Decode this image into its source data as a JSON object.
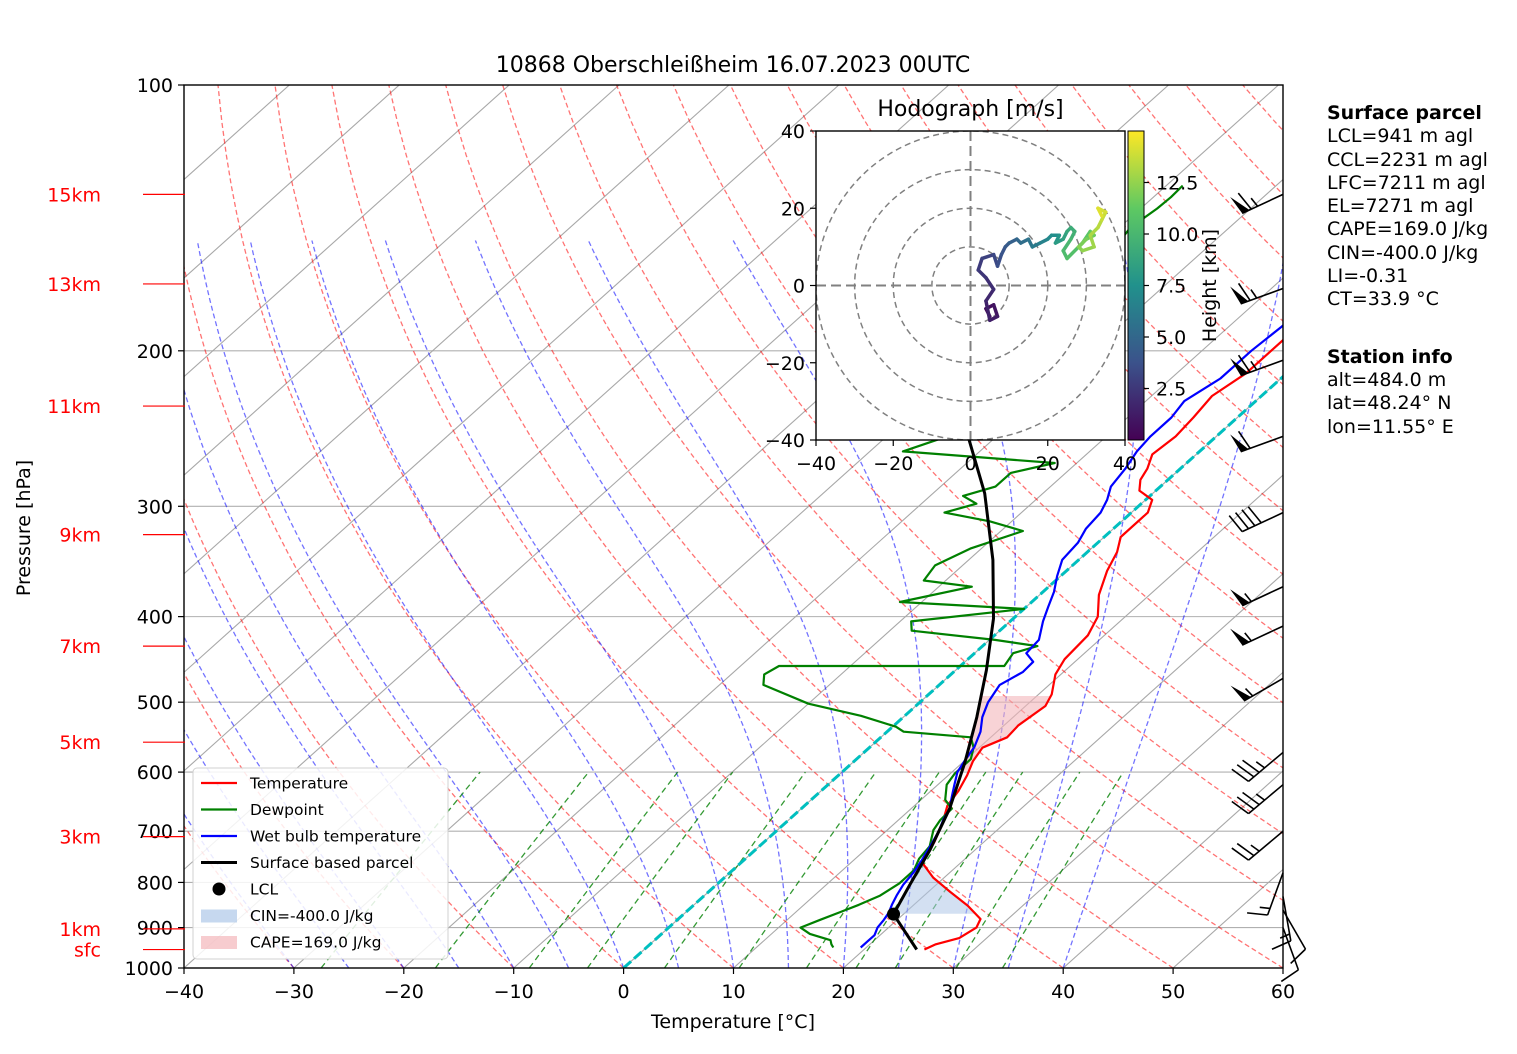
{
  "chart_data": {
    "type": "skew-t log-p sounding",
    "title": "10868 Oberschleißheim 16.07.2023 00UTC",
    "xlabel": "Temperature [°C]",
    "ylabel": "Pressure [hPa]",
    "xlim": [
      -40,
      60
    ],
    "ylim": [
      1000,
      100
    ],
    "yscale": "log",
    "grid": true,
    "x_ticks": [
      "−40",
      "−30",
      "−20",
      "−10",
      "0",
      "10",
      "20",
      "30",
      "40",
      "50",
      "60"
    ],
    "y_ticks": [
      "100",
      "200",
      "300",
      "400",
      "500",
      "600",
      "700",
      "800",
      "900",
      "1000"
    ],
    "height_labels": [
      {
        "label": "15km",
        "pressure": 133
      },
      {
        "label": "13km",
        "pressure": 168
      },
      {
        "label": "11km",
        "pressure": 231
      },
      {
        "label": "9km",
        "pressure": 323
      },
      {
        "label": "7km",
        "pressure": 432
      },
      {
        "label": "5km",
        "pressure": 555
      },
      {
        "label": "3km",
        "pressure": 710
      },
      {
        "label": "1km",
        "pressure": 903
      },
      {
        "label": "sfc",
        "pressure": 953
      }
    ],
    "colors": {
      "temperature": "#ff0000",
      "dewpoint": "#008000",
      "wetbulb": "#0000ff",
      "parcel": "#000000",
      "dry_adiabat": "#ff0000",
      "moist_adiabat": "#0000ff",
      "mixing_ratio": "#008000",
      "zero_isotherm": "#00bfbf",
      "cin_fill": "#aec7e8",
      "cape_fill": "#f4b6bb"
    },
    "series": [
      {
        "name": "Temperature",
        "points": [
          [
            25.5,
            953
          ],
          [
            26,
            940
          ],
          [
            27.5,
            925
          ],
          [
            28,
            900
          ],
          [
            27.5,
            880
          ],
          [
            25,
            850
          ],
          [
            22,
            820
          ],
          [
            19,
            790
          ],
          [
            16.5,
            760
          ],
          [
            15.5,
            720
          ],
          [
            14.3,
            685
          ],
          [
            13,
            655
          ],
          [
            12.5,
            630
          ],
          [
            11.7,
            605
          ],
          [
            10.8,
            583
          ],
          [
            10.3,
            563
          ],
          [
            11.5,
            548
          ],
          [
            11.3,
            531
          ],
          [
            11.8,
            505
          ],
          [
            11.2,
            490
          ],
          [
            9.5,
            465
          ],
          [
            8.8,
            447
          ],
          [
            8.5,
            420
          ],
          [
            7.5,
            400
          ],
          [
            5.4,
            378
          ],
          [
            3.7,
            355
          ],
          [
            2.7,
            338
          ],
          [
            1.5,
            325
          ],
          [
            1.5,
            305
          ],
          [
            0.6,
            295
          ],
          [
            -1.5,
            288
          ],
          [
            -2.5,
            280
          ],
          [
            -3,
            272
          ],
          [
            -4,
            262
          ],
          [
            -3.7,
            250
          ],
          [
            -4,
            238
          ],
          [
            -4.5,
            225
          ],
          [
            -3.7,
            212
          ],
          [
            -3.7,
            200
          ],
          [
            -3.7,
            188
          ],
          [
            -3.6,
            175
          ],
          [
            -3.8,
            165
          ],
          [
            -4,
            157
          ],
          [
            -4.2,
            147
          ],
          [
            -3.5,
            140
          ],
          [
            -1.5,
            133
          ],
          [
            -0.2,
            130
          ]
        ]
      },
      {
        "name": "Dewpoint",
        "points": [
          [
            17,
            948
          ],
          [
            16.5,
            940
          ],
          [
            16,
            930
          ],
          [
            13.5,
            915
          ],
          [
            12,
            900
          ],
          [
            13,
            882
          ],
          [
            14,
            865
          ],
          [
            15,
            848
          ],
          [
            16,
            828
          ],
          [
            16.5,
            802
          ],
          [
            16.5,
            775
          ],
          [
            15.8,
            752
          ],
          [
            15.5,
            728
          ],
          [
            14.2,
            698
          ],
          [
            13.8,
            680
          ],
          [
            13.7,
            660
          ],
          [
            12.2,
            645
          ],
          [
            10.8,
            620
          ],
          [
            10.4,
            602
          ],
          [
            10.4,
            580
          ],
          [
            9.5,
            563
          ],
          [
            8.2,
            548
          ],
          [
            1.5,
            540
          ],
          [
            0.3,
            533
          ],
          [
            -4,
            518
          ],
          [
            -10,
            502
          ],
          [
            -16,
            478
          ],
          [
            -17,
            465
          ],
          [
            -16.5,
            455
          ],
          [
            4,
            455
          ],
          [
            3.5,
            440
          ],
          [
            5,
            432
          ],
          [
            0.5,
            425
          ],
          [
            -8,
            415
          ],
          [
            -9,
            405
          ],
          [
            0,
            392
          ],
          [
            -12,
            385
          ],
          [
            -7,
            370
          ],
          [
            -12,
            364
          ],
          [
            -12.5,
            350
          ],
          [
            -11,
            335
          ],
          [
            -8,
            320
          ],
          [
            -12,
            312
          ],
          [
            -17,
            305
          ],
          [
            -15,
            298
          ],
          [
            -17,
            292
          ],
          [
            -15,
            285
          ],
          [
            -15,
            275
          ],
          [
            -12,
            268
          ],
          [
            -27,
            260
          ],
          [
            -25,
            252
          ],
          [
            -24.5,
            242
          ],
          [
            -26,
            232
          ],
          [
            -23,
            225
          ],
          [
            -25,
            218
          ],
          [
            -23,
            212
          ],
          [
            -25,
            206
          ],
          [
            -24,
            199
          ],
          [
            -26,
            190
          ],
          [
            -27.5,
            180
          ],
          [
            -28.5,
            170
          ],
          [
            -28.5,
            162
          ],
          [
            -28.5,
            152
          ],
          [
            -29,
            145
          ],
          [
            -28.5,
            138
          ],
          [
            -28.4,
            134
          ],
          [
            -28.5,
            130
          ]
        ]
      },
      {
        "name": "Wet bulb temperature",
        "points": [
          [
            19.5,
            948
          ],
          [
            19.5,
            935
          ],
          [
            19.5,
            918
          ],
          [
            19,
            900
          ],
          [
            18.8,
            882
          ],
          [
            18.5,
            865
          ],
          [
            18,
            848
          ],
          [
            17.5,
            828
          ],
          [
            17,
            805
          ],
          [
            16.7,
            780
          ],
          [
            16.2,
            755
          ],
          [
            15.6,
            730
          ],
          [
            14.8,
            700
          ],
          [
            14,
            678
          ],
          [
            13.5,
            660
          ],
          [
            12.5,
            640
          ],
          [
            11.5,
            620
          ],
          [
            10.5,
            600
          ],
          [
            10,
            582
          ],
          [
            9.5,
            562
          ],
          [
            8.5,
            540
          ],
          [
            7.2,
            520
          ],
          [
            6.2,
            500
          ],
          [
            5.5,
            478
          ],
          [
            6.3,
            462
          ],
          [
            6.2,
            450
          ],
          [
            4.7,
            440
          ],
          [
            4.5,
            425
          ],
          [
            3,
            405
          ],
          [
            2,
            390
          ],
          [
            1,
            375
          ],
          [
            -0.3,
            360
          ],
          [
            -1.5,
            345
          ],
          [
            -1.8,
            330
          ],
          [
            -2.5,
            318
          ],
          [
            -2.8,
            305
          ],
          [
            -3.5,
            295
          ],
          [
            -4.5,
            285
          ],
          [
            -5,
            272
          ],
          [
            -5.7,
            260
          ],
          [
            -6,
            250
          ],
          [
            -6,
            238
          ],
          [
            -6.5,
            228
          ],
          [
            -5.5,
            215
          ],
          [
            -5.5,
            200
          ],
          [
            -5.2,
            188
          ],
          [
            -5,
            175
          ],
          [
            -5.3,
            165
          ],
          [
            -5.5,
            155
          ],
          [
            -5.5,
            145
          ],
          [
            -4.5,
            138
          ],
          [
            -2.5,
            132
          ],
          [
            -0.5,
            130
          ]
        ]
      },
      {
        "name": "Surface based parcel",
        "points": [
          [
            24.8,
            953
          ],
          [
            19.1,
            869
          ],
          [
            17.6,
            805
          ],
          [
            15.9,
            735
          ],
          [
            13.5,
            660
          ],
          [
            10.2,
            585
          ],
          [
            6.7,
            520
          ],
          [
            2.8,
            460
          ],
          [
            -1.8,
            402
          ],
          [
            -7.8,
            345
          ],
          [
            -15.3,
            290
          ],
          [
            -24.6,
            240
          ],
          [
            -36,
            195
          ],
          [
            -49,
            158
          ],
          [
            -58,
            138
          ]
        ]
      }
    ],
    "lcl_marker": {
      "label": "LCL",
      "temperature": 19.1,
      "pressure": 869
    },
    "cin": {
      "label": "CIN=-400.0 J/kg",
      "value": -400.0
    },
    "cape": {
      "label": "CAPE=169.0 J/kg",
      "value": 169.0
    },
    "legend": {
      "position": "lower-left",
      "entries": [
        "Temperature",
        "Dewpoint",
        "Wet bulb temperature",
        "Surface based parcel",
        "LCL",
        "CIN=-400.0 J/kg",
        "CAPE=169.0 J/kg"
      ]
    },
    "wind_barbs": [
      {
        "pressure": 133,
        "speed_kt": 65,
        "direction_deg": 245
      },
      {
        "pressure": 170,
        "speed_kt": 65,
        "direction_deg": 250
      },
      {
        "pressure": 205,
        "speed_kt": 65,
        "direction_deg": 250
      },
      {
        "pressure": 250,
        "speed_kt": 60,
        "direction_deg": 250
      },
      {
        "pressure": 305,
        "speed_kt": 40,
        "direction_deg": 245
      },
      {
        "pressure": 370,
        "speed_kt": 55,
        "direction_deg": 245
      },
      {
        "pressure": 410,
        "speed_kt": 55,
        "direction_deg": 245
      },
      {
        "pressure": 470,
        "speed_kt": 55,
        "direction_deg": 240
      },
      {
        "pressure": 570,
        "speed_kt": 35,
        "direction_deg": 230
      },
      {
        "pressure": 620,
        "speed_kt": 35,
        "direction_deg": 230
      },
      {
        "pressure": 700,
        "speed_kt": 25,
        "direction_deg": 230
      },
      {
        "pressure": 780,
        "speed_kt": 15,
        "direction_deg": 200
      },
      {
        "pressure": 830,
        "speed_kt": 15,
        "direction_deg": 170
      },
      {
        "pressure": 860,
        "speed_kt": 10,
        "direction_deg": 150
      },
      {
        "pressure": 900,
        "speed_kt": 10,
        "direction_deg": 160
      }
    ],
    "hodograph": {
      "title": "Hodograph [m/s]",
      "xlim": [
        -40,
        40
      ],
      "ylim": [
        -40,
        40
      ],
      "x_ticks": [
        "−40",
        "−20",
        "0",
        "20",
        "40"
      ],
      "y_ticks": [
        "40",
        "20",
        "0",
        "−20",
        "−40"
      ],
      "rings": [
        10,
        20,
        30,
        40
      ],
      "colorbar": {
        "label": "Height [km]",
        "ticks": [
          "12.5",
          "10.0",
          "7.5",
          "5.0",
          "2.5"
        ],
        "tick_values": [
          12.5,
          10.0,
          7.5,
          5.0,
          2.5
        ],
        "range": [
          0,
          15
        ]
      },
      "points": [
        {
          "u": 5,
          "v": -8,
          "h": 0.3
        },
        {
          "u": 4,
          "v": -6,
          "h": 0.6
        },
        {
          "u": 6,
          "v": -5,
          "h": 0.9
        },
        {
          "u": 7,
          "v": -8,
          "h": 1.2
        },
        {
          "u": 5,
          "v": -9,
          "h": 1.5
        },
        {
          "u": 4,
          "v": -4,
          "h": 1.8
        },
        {
          "u": 6,
          "v": -1,
          "h": 2.1
        },
        {
          "u": 4,
          "v": 2,
          "h": 2.4
        },
        {
          "u": 2,
          "v": 4,
          "h": 2.7
        },
        {
          "u": 3,
          "v": 7,
          "h": 3.0
        },
        {
          "u": 6,
          "v": 8,
          "h": 3.3
        },
        {
          "u": 7,
          "v": 5,
          "h": 3.6
        },
        {
          "u": 8,
          "v": 8,
          "h": 3.9
        },
        {
          "u": 9,
          "v": 10,
          "h": 4.2
        },
        {
          "u": 10,
          "v": 11,
          "h": 4.6
        },
        {
          "u": 12,
          "v": 12,
          "h": 5.0
        },
        {
          "u": 13,
          "v": 11,
          "h": 5.4
        },
        {
          "u": 15,
          "v": 12,
          "h": 5.8
        },
        {
          "u": 16,
          "v": 10,
          "h": 6.2
        },
        {
          "u": 18,
          "v": 11,
          "h": 6.6
        },
        {
          "u": 20,
          "v": 12,
          "h": 7.0
        },
        {
          "u": 21,
          "v": 13,
          "h": 7.4
        },
        {
          "u": 23,
          "v": 13,
          "h": 7.8
        },
        {
          "u": 22,
          "v": 11,
          "h": 8.2
        },
        {
          "u": 24,
          "v": 12,
          "h": 8.6
        },
        {
          "u": 25,
          "v": 14,
          "h": 9.0
        },
        {
          "u": 26,
          "v": 15,
          "h": 9.3
        },
        {
          "u": 27,
          "v": 14,
          "h": 9.6
        },
        {
          "u": 26,
          "v": 12,
          "h": 10.0
        },
        {
          "u": 24,
          "v": 9,
          "h": 10.3
        },
        {
          "u": 25,
          "v": 7,
          "h": 10.6
        },
        {
          "u": 29,
          "v": 11,
          "h": 11.0
        },
        {
          "u": 31,
          "v": 14,
          "h": 11.3
        },
        {
          "u": 32,
          "v": 13,
          "h": 11.6
        },
        {
          "u": 30,
          "v": 12,
          "h": 11.9
        },
        {
          "u": 28,
          "v": 10,
          "h": 12.2
        },
        {
          "u": 29,
          "v": 9,
          "h": 12.5
        },
        {
          "u": 32,
          "v": 10,
          "h": 12.8
        },
        {
          "u": 31,
          "v": 13,
          "h": 13.1
        },
        {
          "u": 33,
          "v": 15,
          "h": 13.4
        },
        {
          "u": 34,
          "v": 17,
          "h": 13.7
        },
        {
          "u": 35,
          "v": 19,
          "h": 14.0
        },
        {
          "u": 33,
          "v": 20,
          "h": 14.3
        },
        {
          "u": 34,
          "v": 18,
          "h": 14.6
        }
      ]
    }
  },
  "surface_parcel": {
    "heading": "Surface parcel",
    "lines": [
      "LCL=941 m agl",
      "CCL=2231 m agl",
      "LFC=7211 m agl",
      "EL=7271 m agl",
      "CAPE=169.0 J/kg",
      "CIN=-400.0 J/kg",
      "LI=-0.31",
      "CT=33.9 °C"
    ]
  },
  "station_info": {
    "heading": "Station info",
    "lines": [
      "alt=484.0 m",
      "lat=48.24° N",
      "lon=11.55° E"
    ]
  }
}
